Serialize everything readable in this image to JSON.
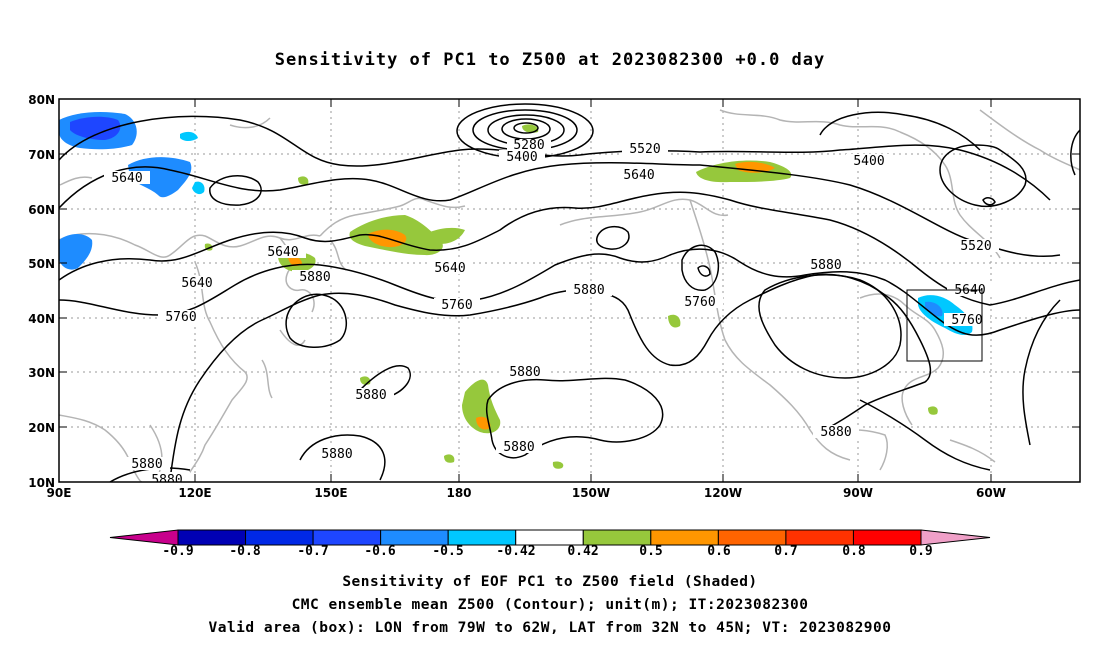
{
  "title": "Sensitivity of PC1 to Z500 at 2023082300 +0.0 day",
  "map": {
    "lat_ticks": [
      "80N",
      "70N",
      "60N",
      "50N",
      "40N",
      "30N",
      "20N",
      "10N"
    ],
    "lon_ticks": [
      "90E",
      "120E",
      "150E",
      "180",
      "150W",
      "120W",
      "90W",
      "60W"
    ],
    "contour_labels": [
      "5280",
      "5400",
      "5520",
      "5640",
      "5640",
      "5400",
      "5640",
      "5520",
      "5640",
      "5880",
      "5640",
      "5640",
      "5760",
      "5760",
      "5880",
      "5880",
      "5760",
      "5760",
      "5880",
      "5880",
      "5880",
      "5880",
      "5880",
      "5880",
      "5880"
    ],
    "valid_box": {
      "lon_west": -79,
      "lon_east": -62,
      "lat_south": 32,
      "lat_north": 45
    }
  },
  "colorbar": {
    "labels": [
      "-0.9",
      "-0.8",
      "-0.7",
      "-0.6",
      "-0.5",
      "-0.42",
      "0.42",
      "0.5",
      "0.6",
      "0.7",
      "0.8",
      "0.9"
    ],
    "colors": [
      "#c8008c",
      "#0000b4",
      "#0028e6",
      "#1e46ff",
      "#1e8cff",
      "#00c8ff",
      "#ffffff",
      "#96c83c",
      "#ff9600",
      "#ff6400",
      "#ff3200",
      "#ff0000",
      "#f0a0c8"
    ]
  },
  "captions": {
    "line1": "Sensitivity of EOF PC1 to Z500 field (Shaded)",
    "line2": "CMC ensemble mean Z500 (Contour); unit(m); IT:2023082300",
    "line3": "Valid area (box): LON from 79W to 62W, LAT from 32N to 45N; VT: 2023082900"
  }
}
